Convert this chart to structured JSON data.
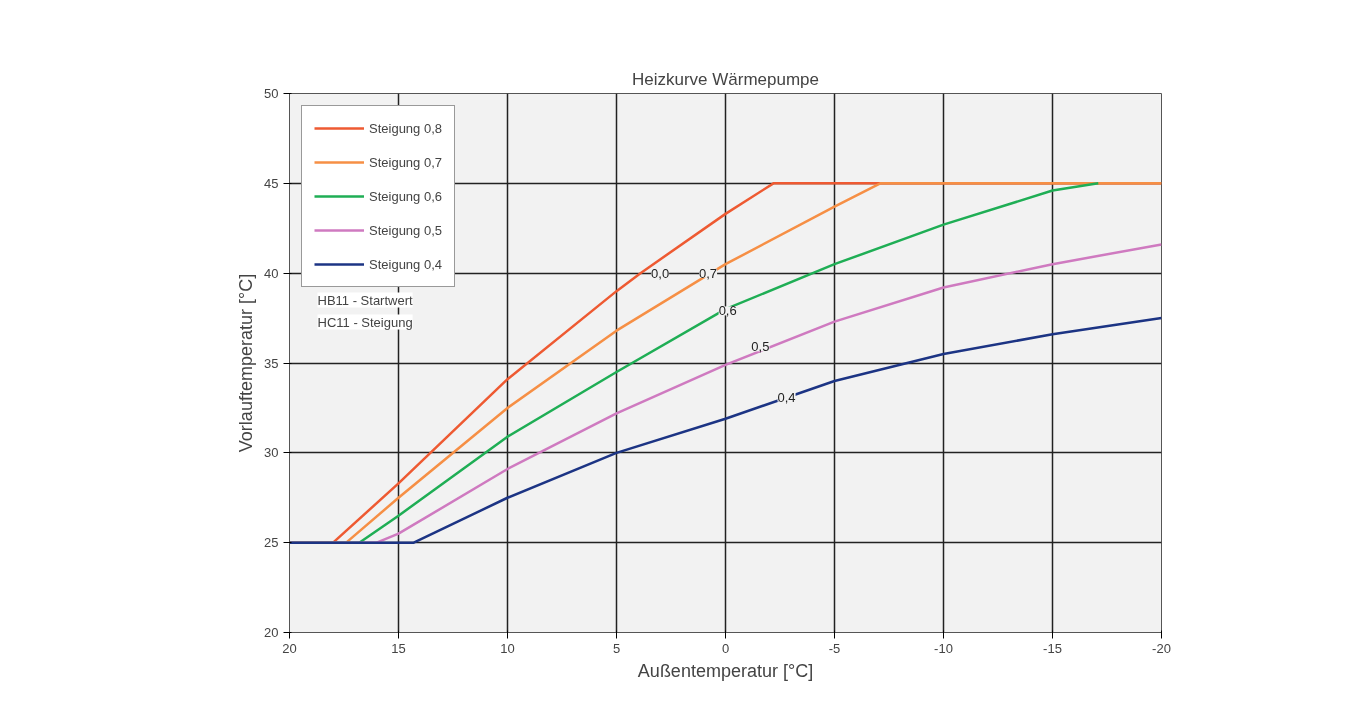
{
  "chart_data": {
    "type": "line",
    "title": "Heizkurve Wärmepumpe",
    "xlabel": "Außentemperatur [°C]",
    "ylabel": "Vorlauftemperatur [°C]",
    "xlim": [
      20,
      -20
    ],
    "xticks": [
      20,
      15,
      10,
      5,
      0,
      -5,
      -10,
      -15,
      -20
    ],
    "ylim": [
      20,
      50
    ],
    "yticks": [
      20,
      25,
      30,
      35,
      40,
      45,
      50
    ],
    "grid": true,
    "legend": "top left",
    "line_style": "solid",
    "series": [
      {
        "name": "Steigung 0,8",
        "color": "#ee5a32",
        "x": [
          20,
          18,
          15,
          10,
          5,
          3.9,
          0,
          -2.2,
          -20
        ],
        "values": [
          25,
          25,
          28.3,
          34.1,
          39.0,
          40,
          43.3,
          45,
          45
        ]
      },
      {
        "name": "Steigung 0,7",
        "color": "#f68f45",
        "x": [
          20,
          17.4,
          15,
          10,
          5,
          0,
          -5,
          -7.1,
          -20
        ],
        "values": [
          25,
          25,
          27.5,
          32.5,
          36.8,
          40.5,
          43.7,
          45,
          45
        ]
      },
      {
        "name": "Steigung 0,6",
        "color": "#1fae55",
        "x": [
          20,
          16.8,
          15,
          10,
          5,
          0,
          -5,
          -10,
          -15,
          -17.1
        ],
        "values": [
          25,
          25,
          26.5,
          30.9,
          34.5,
          38.0,
          40.5,
          42.7,
          44.6,
          45
        ]
      },
      {
        "name": "Steigung 0,5",
        "color": "#cf7ac0",
        "x": [
          20,
          16,
          15,
          10,
          5,
          0,
          -5,
          -10,
          -15,
          -20
        ],
        "values": [
          25,
          25,
          25.5,
          29.1,
          32.2,
          34.9,
          37.3,
          39.2,
          40.5,
          41.6
        ]
      },
      {
        "name": "Steigung 0,4",
        "color": "#1c3484",
        "x": [
          20,
          14.3,
          10,
          5,
          0,
          -5,
          -10,
          -15,
          -20
        ],
        "values": [
          25,
          25,
          27.5,
          30.0,
          31.9,
          34.0,
          35.5,
          36.6,
          37.5
        ]
      }
    ],
    "annotations": [
      {
        "text": "0,0",
        "x": 3.0,
        "y": 40.0
      },
      {
        "text": "0,7",
        "x": 0.8,
        "y": 40.0
      },
      {
        "text": "0,6",
        "x": -0.1,
        "y": 37.9
      },
      {
        "text": "0,5",
        "x": -1.6,
        "y": 35.9
      },
      {
        "text": "0,4",
        "x": -2.8,
        "y": 33.1
      },
      "HB11 - Startwert",
      "HC11 - Steigung"
    ]
  }
}
